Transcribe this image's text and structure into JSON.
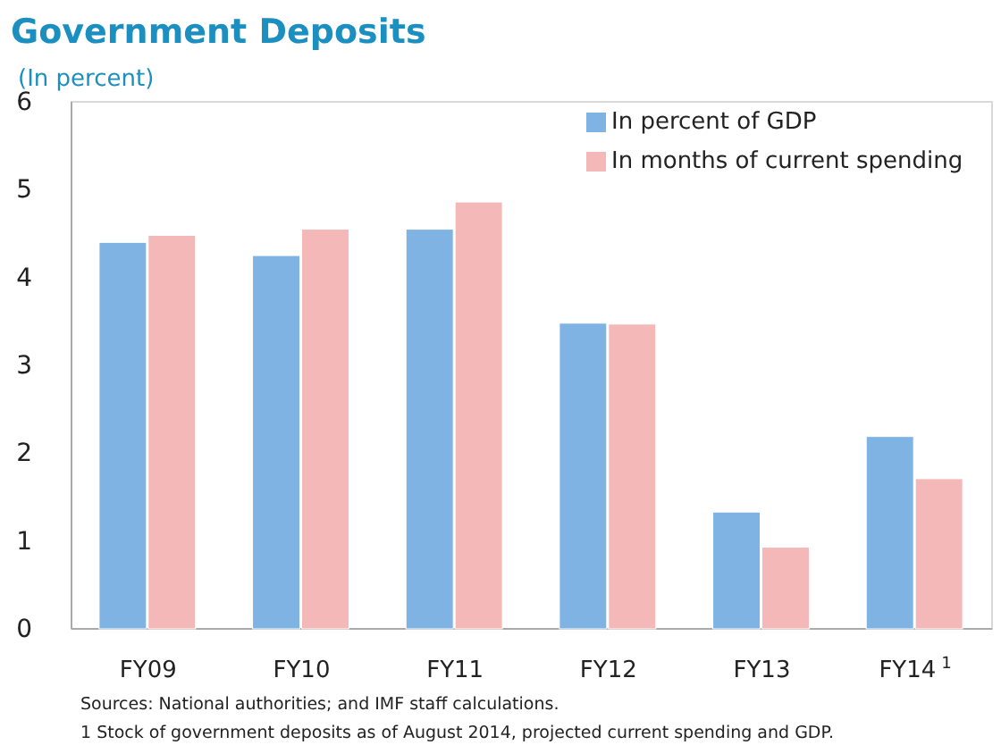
{
  "chart_data": {
    "type": "bar",
    "title": "Government Deposits",
    "subtitle": "(In percent)",
    "categories": [
      "FY09",
      "FY10",
      "FY11",
      "FY12",
      "FY13",
      "FY14$^{1}$"
    ],
    "series": [
      {
        "name": "In percent of GDP",
        "color": "#7eb3e3",
        "values": [
          4.4,
          4.25,
          4.55,
          3.48,
          1.33,
          2.19
        ]
      },
      {
        "name": "In months of current spending",
        "color": "#f4b8b8",
        "values": [
          4.48,
          4.55,
          4.86,
          3.47,
          0.93,
          1.71
        ]
      }
    ],
    "ylim": [
      0,
      6
    ],
    "yticks": [
      0,
      1,
      2,
      3,
      4,
      5,
      6
    ],
    "grid": false,
    "legend": "top right",
    "annotations": [
      "Sources: National authorities; and IMF staff calculations.",
      "1 Stock of government deposits as of August 2014, projected current spending and GDP."
    ]
  }
}
